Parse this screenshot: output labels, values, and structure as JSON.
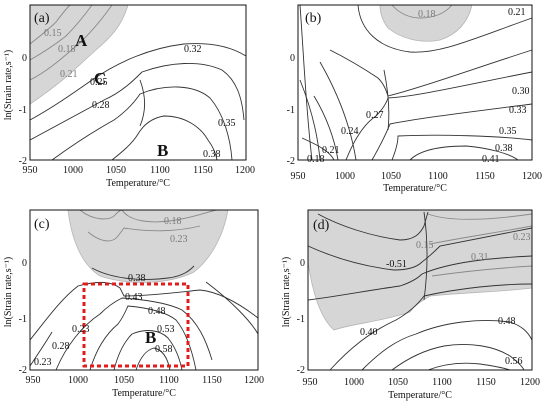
{
  "figure": {
    "panels": [
      {
        "id": "a",
        "tag": "(a)",
        "xlabel": "Temperature/°C",
        "ylabel": "ln(Strain rate,s⁻¹)",
        "xticks": [
          "950",
          "1000",
          "1050",
          "1100",
          "1150",
          "1200"
        ],
        "yticks": [
          "0",
          "-1",
          "-2"
        ],
        "regions": [
          {
            "letter": "A"
          },
          {
            "letter": "C"
          },
          {
            "letter": "B"
          }
        ],
        "contour_labels": [
          "0.15",
          "0.18",
          "0.21",
          "0.25",
          "0.28",
          "0.32",
          "0.35",
          "0.38"
        ]
      },
      {
        "id": "b",
        "tag": "(b)",
        "xlabel": "Temperature/°C",
        "ylabel": "",
        "xticks": [
          "950",
          "1000",
          "1050",
          "1100",
          "1150",
          "1200"
        ],
        "yticks": [
          "0",
          "-1",
          "-2"
        ],
        "regions": [],
        "contour_labels": [
          "0.18",
          "0.21",
          "0.18",
          "0.21",
          "0.24",
          "0.27",
          "0.30",
          "0.33",
          "0.35",
          "0.38",
          "0.41"
        ]
      },
      {
        "id": "c",
        "tag": "(c)",
        "xlabel": "Temperature/°C",
        "ylabel": "ln(Strain rate,s⁻¹)",
        "xticks": [
          "950",
          "1000",
          "1050",
          "1100",
          "1150",
          "1200"
        ],
        "yticks": [
          "0",
          "-1",
          "-2"
        ],
        "regions": [
          {
            "letter": "B"
          }
        ],
        "contour_labels": [
          "0.18",
          "0.23",
          "0.38",
          "0.43",
          "0.48",
          "0.53",
          "0.58",
          "0.23",
          "0.28",
          "0.23"
        ]
      },
      {
        "id": "d",
        "tag": "(d)",
        "xlabel": "Temperature/°C",
        "ylabel": "ln(Strain rate,s⁻¹)",
        "xticks": [
          "950",
          "1000",
          "1050",
          "1100",
          "1150",
          "1200"
        ],
        "yticks": [
          "0",
          "-1",
          "-2"
        ],
        "regions": [],
        "contour_labels": [
          "-0.51",
          "0.15",
          "0.31",
          "0.23",
          "0.40",
          "0.48",
          "0.56"
        ]
      }
    ]
  },
  "chart_data": [
    {
      "type": "contour",
      "panel": "(a)",
      "xlabel": "Temperature/°C",
      "ylabel": "ln(Strain rate,s⁻¹)",
      "xlim": [
        950,
        1200
      ],
      "ylim": [
        -2,
        0.7
      ],
      "levels": [
        0.15,
        0.18,
        0.21,
        0.25,
        0.28,
        0.32,
        0.35,
        0.38
      ],
      "regions": [
        "A",
        "B",
        "C"
      ]
    },
    {
      "type": "contour",
      "panel": "(b)",
      "xlabel": "Temperature/°C",
      "ylabel": "",
      "xlim": [
        950,
        1200
      ],
      "ylim": [
        -2,
        0.7
      ],
      "levels": [
        0.18,
        0.21,
        0.24,
        0.27,
        0.3,
        0.33,
        0.35,
        0.38,
        0.41
      ]
    },
    {
      "type": "contour",
      "panel": "(c)",
      "xlabel": "Temperature/°C",
      "ylabel": "ln(Strain rate,s⁻¹)",
      "xlim": [
        950,
        1200
      ],
      "ylim": [
        -2,
        0.7
      ],
      "levels": [
        0.18,
        0.23,
        0.28,
        0.38,
        0.43,
        0.48,
        0.53,
        0.58
      ],
      "regions": [
        "B"
      ]
    },
    {
      "type": "contour",
      "panel": "(d)",
      "xlabel": "Temperature/°C",
      "ylabel": "ln(Strain rate,s⁻¹)",
      "xlim": [
        950,
        1200
      ],
      "ylim": [
        -2,
        0.7
      ],
      "levels": [
        -0.51,
        0.15,
        0.23,
        0.31,
        0.4,
        0.48,
        0.56
      ]
    }
  ]
}
